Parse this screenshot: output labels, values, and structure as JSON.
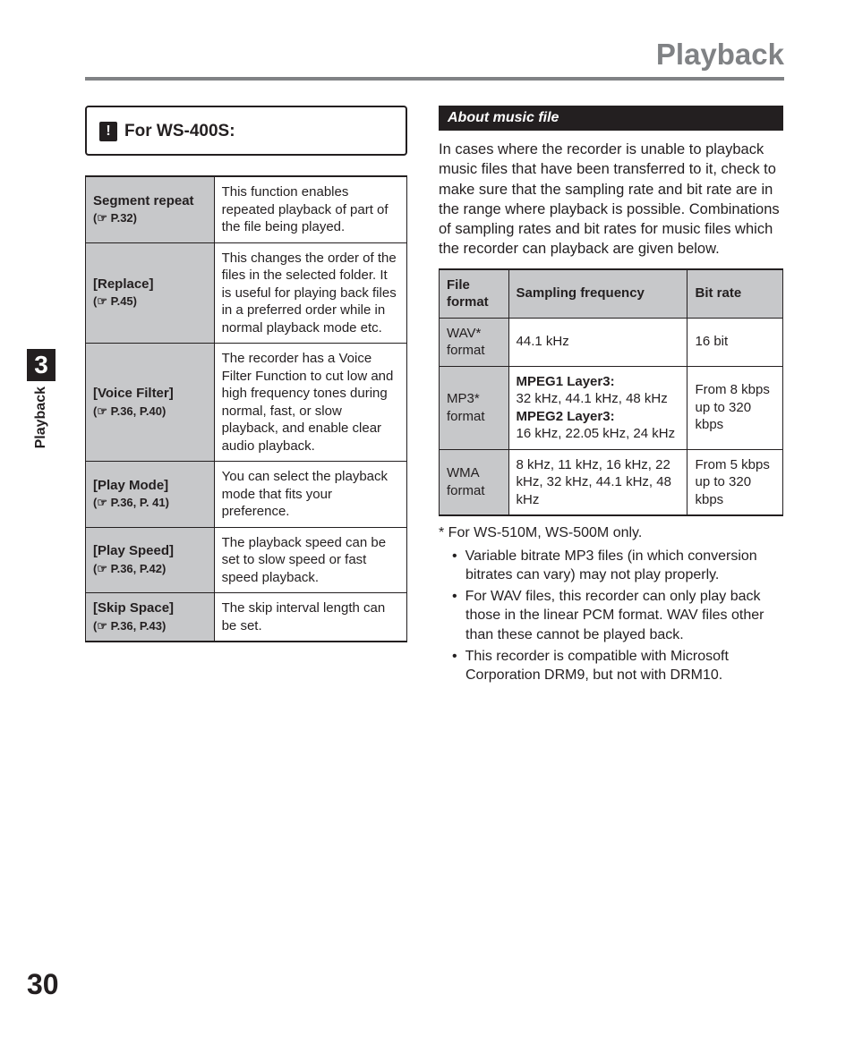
{
  "header": {
    "title": "Playback"
  },
  "sidetab": {
    "chapter": "3",
    "label": "Playback"
  },
  "pageNumber": "30",
  "wsbox": {
    "label": "For WS-400S:"
  },
  "features": [
    {
      "name": "Segment repeat",
      "pref": "(☞ P.32)",
      "desc": "This function enables repeated playback of part of the file being played."
    },
    {
      "name": "[Replace]",
      "pref": "(☞ P.45)",
      "desc": "This changes the order of the files in the selected folder. It is useful for playing back files in a preferred order while in normal playback mode etc."
    },
    {
      "name": "[Voice Filter]",
      "pref": "(☞ P.36, P.40)",
      "desc": "The recorder has a Voice Filter Function to cut low and high frequency tones during normal, fast, or slow playback, and enable clear audio playback."
    },
    {
      "name": "[Play Mode]",
      "pref": "(☞ P.36, P. 41)",
      "desc": "You can select the playback mode that fits your preference."
    },
    {
      "name": "[Play Speed]",
      "pref": "(☞ P.36, P.42)",
      "desc": "The playback speed can be set to slow speed or fast speed playback."
    },
    {
      "name": "[Skip Space]",
      "pref": "(☞ P.36, P.43)",
      "desc": "The skip interval length can be set."
    }
  ],
  "music": {
    "heading": "About music file",
    "paragraph": "In cases where the recorder is unable to playback music files that have been transferred to it, check to make sure that the sampling rate and bit rate are in the range where playback is possible. Combinations of sampling rates and bit rates for music files which the recorder can playback are given below.",
    "columns": [
      "File format",
      "Sampling frequency",
      "Bit rate"
    ],
    "rows": [
      {
        "fmt": "WAV* format",
        "freq_html": "44.1 kHz",
        "rate": "16 bit"
      },
      {
        "fmt": "MP3* format",
        "freq_html": "<span class='b'>MPEG1 Layer3:</span><br>32 kHz, 44.1 kHz, 48 kHz<br><span class='b'>MPEG2 Layer3:</span><br>16 kHz, 22.05 kHz, 24 kHz",
        "rate": "From 8 kbps up to 320 kbps"
      },
      {
        "fmt": "WMA format",
        "freq_html": "8 kHz, 11 kHz, 16 kHz, 22 kHz, 32 kHz, 44.1 kHz, 48 kHz",
        "rate": "From 5 kbps up to 320 kbps"
      }
    ],
    "footnote": "*  For WS-510M, WS-500M only.",
    "bullets": [
      "Variable bitrate MP3 files (in which conversion bitrates can vary) may not play properly.",
      "For WAV files, this recorder can only play back those in the linear PCM format. WAV files other than these cannot be played back.",
      "This recorder is compatible with Microsoft Corporation DRM9, but not with DRM10."
    ]
  }
}
